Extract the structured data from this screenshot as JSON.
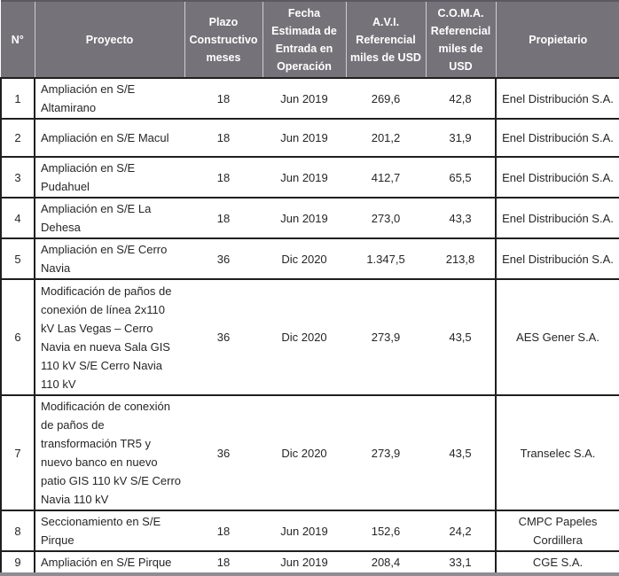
{
  "table": {
    "columns": [
      {
        "key": "numero",
        "label": "N°"
      },
      {
        "key": "proyecto",
        "label": "Proyecto"
      },
      {
        "key": "plazo",
        "label": "Plazo Constructivo meses"
      },
      {
        "key": "fecha",
        "label": "Fecha Estimada de Entrada en Operación"
      },
      {
        "key": "avi",
        "label": "A.V.I. Referencial miles de USD"
      },
      {
        "key": "coma",
        "label": "C.O.M.A. Referencial miles de USD"
      },
      {
        "key": "propietario",
        "label": "Propietario"
      }
    ],
    "rows": [
      [
        "1",
        "Ampliación en S/E Altamirano",
        "18",
        "Jun 2019",
        "269,6",
        "42,8",
        "Enel Distribución S.A."
      ],
      [
        "2",
        "Ampliación en S/E Macul",
        "18",
        "Jun 2019",
        "201,2",
        "31,9",
        "Enel Distribución S.A."
      ],
      [
        "3",
        "Ampliación en S/E Pudahuel",
        "18",
        "Jun 2019",
        "412,7",
        "65,5",
        "Enel Distribución S.A."
      ],
      [
        "4",
        "Ampliación en S/E La Dehesa",
        "18",
        "Jun 2019",
        "273,0",
        "43,3",
        "Enel Distribución S.A."
      ],
      [
        "5",
        "Ampliación en S/E Cerro Navia",
        "36",
        "Dic 2020",
        "1.347,5",
        "213,8",
        "Enel Distribución S.A."
      ],
      [
        "6",
        "Modificación de paños de conexión de línea 2x110 kV Las Vegas – Cerro Navia en nueva Sala GIS 110 kV S/E Cerro Navia 110 kV",
        "36",
        "Dic 2020",
        "273,9",
        "43,5",
        "AES Gener S.A."
      ],
      [
        "7",
        "Modificación de conexión de paños de transformación TR5 y nuevo banco en nuevo patio GIS 110 kV S/E Cerro Navia 110 kV",
        "36",
        "Dic 2020",
        "273,9",
        "43,5",
        "Transelec S.A."
      ],
      [
        "8",
        "Seccionamiento en S/E Pirque",
        "18",
        "Jun 2019",
        "152,6",
        "24,2",
        "CMPC Papeles Cordillera"
      ],
      [
        "9",
        "Ampliación en S/E Pirque",
        "18",
        "Jun 2019",
        "208,4",
        "33,1",
        "CGE S.A."
      ]
    ]
  },
  "colors": {
    "header_bg": "#767279",
    "header_text": "#ffffff",
    "row_border": "#1f1f1f",
    "bottom_band": "#8f8c93",
    "body_text": "#262626"
  }
}
